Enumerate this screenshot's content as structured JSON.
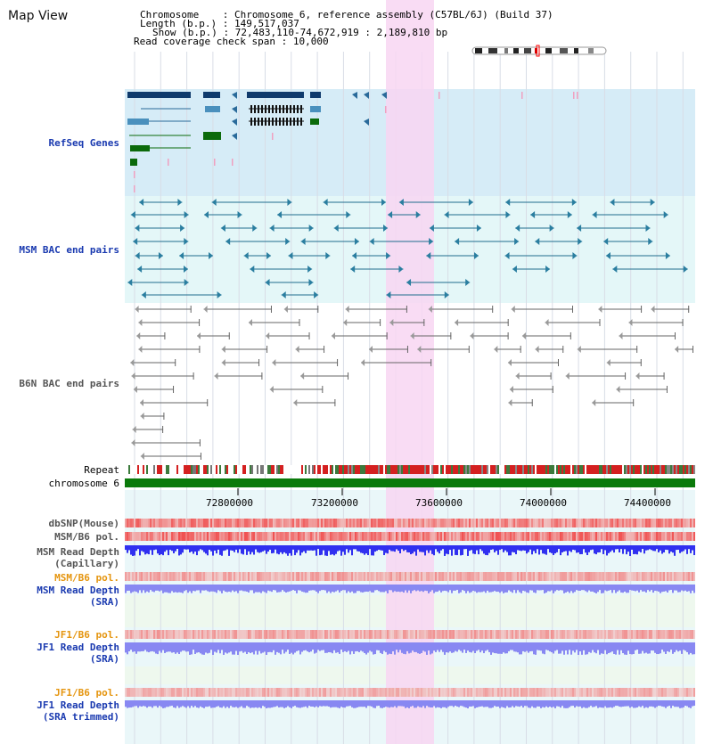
{
  "title": "Map View",
  "info": {
    "chromosome_label": "Chromosome",
    "chromosome_value": "Chromosome 6, reference assembly (C57BL/6J) (Build 37)",
    "length_label": "Length (b.p.)",
    "length_value": "149,517,037",
    "show_label": "Show (b.p.)",
    "show_value": "72,483,110-74,672,919 : 2,189,810 bp",
    "coverage_label": "Read coverage check span",
    "coverage_value": "10,000"
  },
  "tracks": {
    "refseq": "RefSeq Genes",
    "msm_bac": "MSM BAC end pairs",
    "b6n_bac": "B6N BAC end pairs",
    "repeat": "Repeat",
    "chromosome": "chromosome 6",
    "dbsnp": "dbSNP(Mouse)",
    "msm_b6_pol": "MSM/B6 pol.",
    "msm_depth_cap_1": "MSM Read Depth",
    "msm_depth_cap_2": "(Capillary)",
    "msm_b6_pol_2": "MSM/B6 pol.",
    "msm_depth_sra_1": "MSM Read Depth",
    "msm_depth_sra_2": "(SRA)",
    "jf1_b6_pol": "JF1/B6 pol.",
    "jf1_depth_sra_1": "JF1 Read Depth",
    "jf1_depth_sra_2": "(SRA)",
    "jf1_b6_pol_2": "JF1/B6 pol.",
    "jf1_depth_trim_1": "JF1 Read Depth",
    "jf1_depth_trim_2": "(SRA trimmed)"
  },
  "axis_ticks": [
    "72800000",
    "73200000",
    "73600000",
    "74000000",
    "74400000"
  ],
  "colors": {
    "refseq_bg": "#d6ecf7",
    "msm_bg": "#e4f7f8",
    "highlight": "#f8d6f2",
    "chromosome_bar": "#0b7a0b",
    "depth_blue": "#3030f0",
    "depth_light": "#8888f2"
  }
}
